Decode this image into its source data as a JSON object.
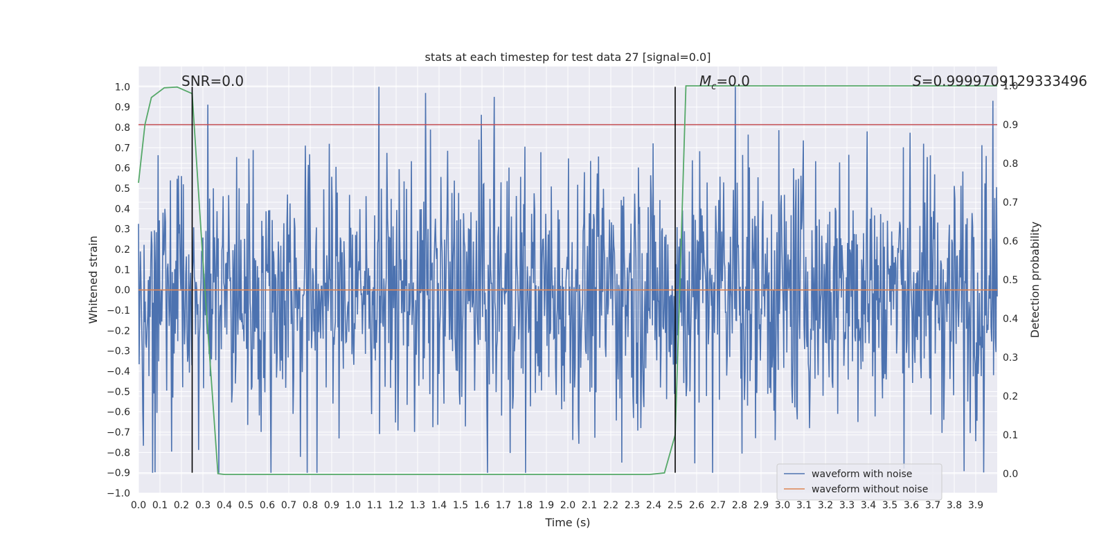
{
  "chart_data": {
    "type": "line",
    "title": "stats at each timestep for test data 27 [signal=0.0]",
    "xlabel": "Time (s)",
    "ylabel": "Whitened strain",
    "y2label": "Detection probability",
    "xlim": [
      0.0,
      4.0
    ],
    "ylim": [
      -1.0,
      1.1
    ],
    "y2lim": [
      -0.05,
      1.05
    ],
    "x_ticks": [
      "0.0",
      "0.1",
      "0.2",
      "0.3",
      "0.4",
      "0.5",
      "0.6",
      "0.7",
      "0.8",
      "0.9",
      "1.0",
      "1.1",
      "1.2",
      "1.3",
      "1.4",
      "1.5",
      "1.6",
      "1.7",
      "1.8",
      "1.9",
      "2.0",
      "2.1",
      "2.2",
      "2.3",
      "2.4",
      "2.5",
      "2.6",
      "2.7",
      "2.8",
      "2.9",
      "3.0",
      "3.1",
      "3.2",
      "3.3",
      "3.4",
      "3.5",
      "3.6",
      "3.7",
      "3.8",
      "3.9"
    ],
    "y_ticks": [
      "−1.0",
      "−0.9",
      "−0.8",
      "−0.7",
      "−0.6",
      "−0.5",
      "−0.4",
      "−0.3",
      "−0.2",
      "−0.1",
      "0.0",
      "0.1",
      "0.2",
      "0.3",
      "0.4",
      "0.5",
      "0.6",
      "0.7",
      "0.8",
      "0.9",
      "1.0"
    ],
    "y2_ticks": [
      "0.0",
      "0.1",
      "0.2",
      "0.3",
      "0.4",
      "0.5",
      "0.6",
      "0.7",
      "0.8",
      "0.9",
      "1.0"
    ],
    "grid": true,
    "legend_position": "bottom-right",
    "annotations": {
      "snr": "SNR=0.0",
      "mc_symbol": "M",
      "mc_subscript": "c",
      "mc_value": "=0.0",
      "s_symbol": "S",
      "s_value": "=0.9999709129333496"
    },
    "series": [
      {
        "name": "waveform with noise",
        "color": "#4c72b0",
        "description": "dense noise, peak amplitude approx 1.0",
        "noise_range": [
          -0.9,
          1.0
        ]
      },
      {
        "name": "waveform without noise",
        "color": "#dd8452",
        "x": [
          0.0,
          4.0
        ],
        "y": [
          0.0,
          0.0
        ]
      },
      {
        "name": "detection probability",
        "axis": "right",
        "color": "#55a868",
        "x": [
          0.0,
          0.03,
          0.06,
          0.12,
          0.18,
          0.25,
          0.3,
          0.37,
          0.4,
          1.0,
          2.0,
          2.38,
          2.45,
          2.5,
          2.52,
          2.55,
          2.6,
          3.0,
          3.5,
          4.0
        ],
        "y": [
          0.75,
          0.9,
          0.97,
          0.995,
          0.997,
          0.98,
          0.55,
          0.0,
          -0.002,
          -0.002,
          -0.002,
          -0.002,
          0.002,
          0.1,
          0.45,
          1.0,
          1.0,
          1.0,
          1.0,
          1.0
        ]
      },
      {
        "name": "threshold",
        "axis": "right",
        "color": "#c44e52",
        "x": [
          0.0,
          4.0
        ],
        "y": [
          0.9,
          0.9
        ]
      }
    ],
    "vlines": [
      {
        "x": 0.25,
        "color": "#000000",
        "y_from": -0.9,
        "y_to": 1.0
      },
      {
        "x": 2.5,
        "color": "#000000",
        "y_from": -0.9,
        "y_to": 1.0
      }
    ]
  }
}
